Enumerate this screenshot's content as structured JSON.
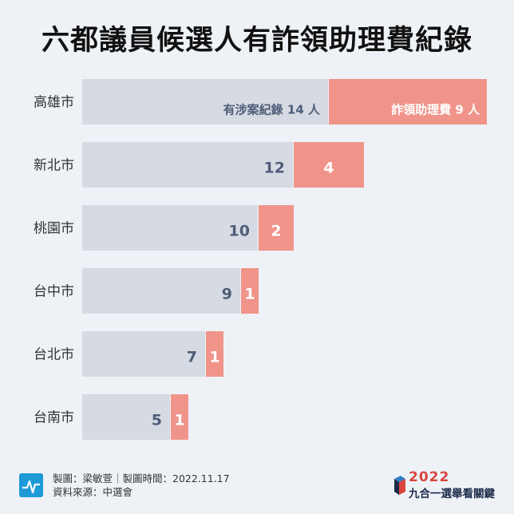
{
  "title": "六都議員候選人有詐領助理費紀錄",
  "footer": {
    "line1": "製圖：梁敏萱｜製圖時間：2022.11.17",
    "line2": "資料來源：中選會"
  },
  "brand": {
    "year": "2022",
    "name": "九合一選舉看關鍵",
    "icon": "brand-logo-icon",
    "colors": {
      "red": "#d9453e",
      "blue": "#2f7fc4",
      "navy": "#1b2a49"
    }
  },
  "colors": {
    "record": "#d6dbe3",
    "fraud": "#f0948a",
    "label_text": "#4f5d78",
    "fraud_text": "#ffffff",
    "category_text": "#333333",
    "footer_icon": "#1e9ad6"
  },
  "chart_data": {
    "type": "bar",
    "orientation": "horizontal",
    "stacked": true,
    "title": "六都議員候選人有詐領助理費紀錄",
    "categories": [
      "高雄市",
      "新北市",
      "桃園市",
      "台中市",
      "台北市",
      "台南市"
    ],
    "series": [
      {
        "name": "有涉案紀錄",
        "values": [
          14,
          12,
          10,
          9,
          7,
          5
        ],
        "unit": "人"
      },
      {
        "name": "詐領助理費",
        "values": [
          9,
          4,
          2,
          1,
          1,
          1
        ],
        "unit": "人"
      }
    ],
    "value_labels": {
      "first_row": [
        "有涉案紀錄  14 人",
        "詐領助理費  9 人"
      ],
      "others": [
        [
          "12",
          "4"
        ],
        [
          "10",
          "2"
        ],
        [
          "9",
          "1"
        ],
        [
          "7",
          "1"
        ],
        [
          "5",
          "1"
        ]
      ]
    },
    "xlim": [
      0,
      23
    ],
    "grid": false,
    "legend": "none"
  }
}
